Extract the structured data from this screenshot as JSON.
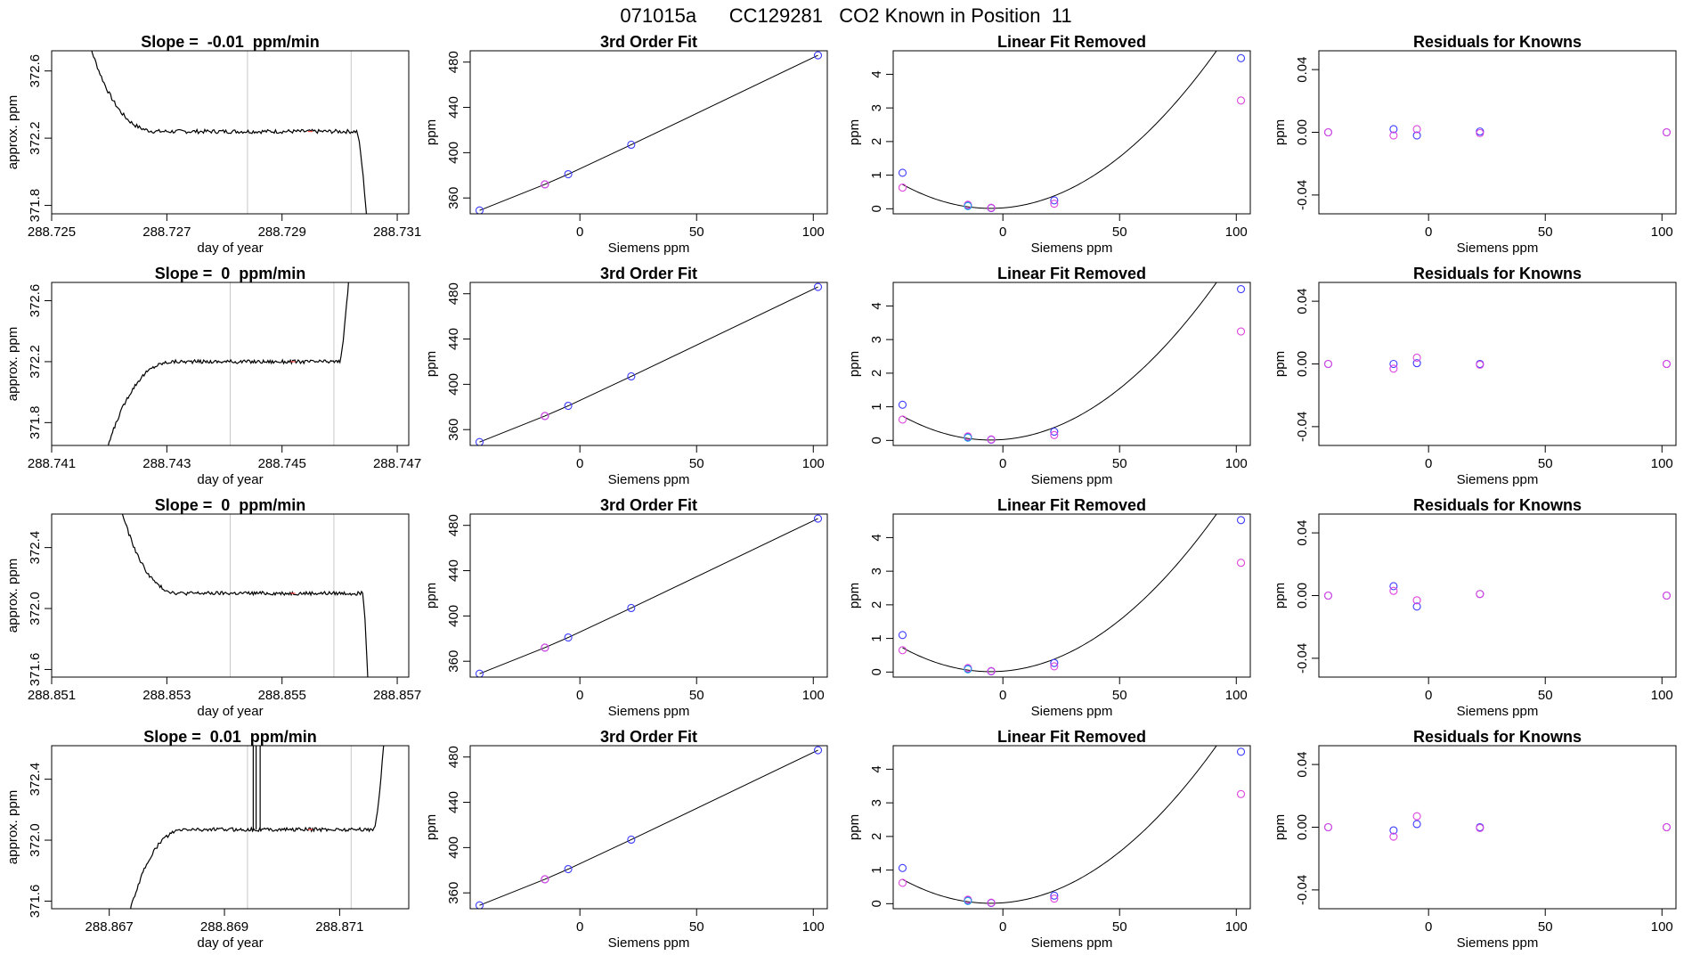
{
  "suptitle": "071015a      CC129281   CO2 Known in Position  11",
  "colors": {
    "blue": "#3b3bff",
    "magenta": "#dd44dd",
    "cyan": "#22a8dd",
    "line": "#000000",
    "vline": "#c8c8c8",
    "redtick": "#ff4444"
  },
  "chart_data": [
    {
      "type": "line",
      "panel": "trace-row-1",
      "title": "Slope =  -0.01  ppm/min",
      "xlabel": "day of year",
      "ylabel": "approx. ppm",
      "xlim": [
        288.725,
        288.7312
      ],
      "ylim": [
        371.75,
        372.72
      ],
      "xticks": [
        288.725,
        288.727,
        288.729,
        288.731
      ],
      "xticklabels": [
        "288.725",
        "288.727",
        "288.729",
        "288.731"
      ],
      "yticks": [
        371.8,
        372.2,
        372.6
      ],
      "yticklabels": [
        "371.8",
        "372.2",
        "372.6"
      ],
      "vlines": [
        288.7284,
        288.7302
      ],
      "base": 372.24,
      "noise": 0.012,
      "x_start": 288.7255,
      "start_value": 372.95,
      "x_settle": 288.7269,
      "x_drop": 288.7303,
      "x_end": 288.7305,
      "end_value": 371.6,
      "spikes": []
    },
    {
      "type": "scatter",
      "panel": "fit-row-1",
      "title": "3rd Order Fit",
      "xlabel": "Siemens ppm",
      "ylabel": "ppm",
      "xlim": [
        -47,
        106
      ],
      "ylim": [
        346,
        490
      ],
      "xticks": [
        0,
        50,
        100
      ],
      "xticklabels": [
        "0",
        "50",
        "100"
      ],
      "yticks": [
        360,
        400,
        440,
        480
      ],
      "yticklabels": [
        "360",
        "400",
        "440",
        "480"
      ],
      "x": [
        -43,
        -15,
        -5,
        22,
        102
      ],
      "y": [
        349,
        372,
        381,
        407,
        486
      ]
    },
    {
      "type": "scatter",
      "panel": "linear-removed-row-1",
      "title": "Linear Fit Removed",
      "xlabel": "Siemens ppm",
      "ylabel": "ppm",
      "xlim": [
        -47,
        106
      ],
      "ylim": [
        -0.15,
        4.7
      ],
      "xticks": [
        0,
        50,
        100
      ],
      "xticklabels": [
        "0",
        "50",
        "100"
      ],
      "yticks": [
        0,
        1,
        2,
        3,
        4
      ],
      "yticklabels": [
        "0",
        "1",
        "2",
        "3",
        "4"
      ],
      "series": [
        {
          "color": "blue",
          "x": [
            -43,
            -15,
            -5,
            22,
            102
          ],
          "y": [
            1.07,
            0.1,
            0.02,
            0.25,
            4.48
          ]
        },
        {
          "color": "magenta",
          "x": [
            -43,
            -15,
            -5,
            22,
            102
          ],
          "y": [
            0.63,
            0.12,
            0.03,
            0.15,
            3.22
          ]
        },
        {
          "color": "cyan",
          "x": [
            -15
          ],
          "y": [
            0.08
          ]
        }
      ],
      "curve": {
        "a": 0.0005,
        "b": 0.0053,
        "c": 0.026
      }
    },
    {
      "type": "scatter",
      "panel": "residuals-row-1",
      "title": "Residuals for Knowns",
      "xlabel": "Siemens ppm",
      "ylabel": "ppm",
      "xlim": [
        -47,
        106
      ],
      "ylim": [
        -0.052,
        0.052
      ],
      "xticks": [
        0,
        50,
        100
      ],
      "xticklabels": [
        "0",
        "50",
        "100"
      ],
      "yticks": [
        -0.04,
        0,
        0.04
      ],
      "yticklabels": [
        "-0.04",
        "0.00",
        "0.04"
      ],
      "series": [
        {
          "color": "blue",
          "x": [
            -43,
            -15,
            -5,
            22,
            102
          ],
          "y": [
            0.0,
            0.002,
            -0.002,
            0.0005,
            0.0
          ]
        },
        {
          "color": "magenta",
          "x": [
            -43,
            -15,
            -5,
            22,
            102
          ],
          "y": [
            0.0,
            -0.002,
            0.002,
            -0.0005,
            0.0
          ]
        }
      ]
    },
    {
      "type": "line",
      "panel": "trace-row-2",
      "title": "Slope =  0  ppm/min",
      "xlabel": "day of year",
      "ylabel": "approx. ppm",
      "xlim": [
        288.741,
        288.7472
      ],
      "ylim": [
        371.65,
        372.72
      ],
      "xticks": [
        288.741,
        288.743,
        288.745,
        288.747
      ],
      "xticklabels": [
        "288.741",
        "288.743",
        "288.745",
        "288.747"
      ],
      "yticks": [
        371.8,
        372.2,
        372.6
      ],
      "yticklabels": [
        "371.8",
        "372.2",
        "372.6"
      ],
      "vlines": [
        288.7441,
        288.7459
      ],
      "base": 372.2,
      "noise": 0.012,
      "x_start": 288.7419,
      "start_value": 371.55,
      "x_settle": 288.7432,
      "x_drop": 288.746,
      "x_end": 288.7462,
      "end_value": 372.95,
      "spikes": []
    },
    {
      "type": "scatter",
      "panel": "fit-row-2",
      "title": "3rd Order Fit",
      "xlabel": "Siemens ppm",
      "ylabel": "ppm",
      "xlim": [
        -47,
        106
      ],
      "ylim": [
        346,
        490
      ],
      "xticks": [
        0,
        50,
        100
      ],
      "xticklabels": [
        "0",
        "50",
        "100"
      ],
      "yticks": [
        360,
        400,
        440,
        480
      ],
      "yticklabels": [
        "360",
        "400",
        "440",
        "480"
      ],
      "x": [
        -43,
        -15,
        -5,
        22,
        102
      ],
      "y": [
        349,
        372,
        381,
        407,
        486
      ]
    },
    {
      "type": "scatter",
      "panel": "linear-removed-row-2",
      "title": "Linear Fit Removed",
      "xlabel": "Siemens ppm",
      "ylabel": "ppm",
      "xlim": [
        -47,
        106
      ],
      "ylim": [
        -0.15,
        4.7
      ],
      "xticks": [
        0,
        50,
        100
      ],
      "xticklabels": [
        "0",
        "50",
        "100"
      ],
      "yticks": [
        0,
        1,
        2,
        3,
        4
      ],
      "yticklabels": [
        "0",
        "1",
        "2",
        "3",
        "4"
      ],
      "series": [
        {
          "color": "blue",
          "x": [
            -43,
            -15,
            -5,
            22,
            102
          ],
          "y": [
            1.06,
            0.1,
            0.02,
            0.26,
            4.5
          ]
        },
        {
          "color": "magenta",
          "x": [
            -43,
            -15,
            -5,
            22,
            102
          ],
          "y": [
            0.62,
            0.12,
            0.03,
            0.16,
            3.24
          ]
        },
        {
          "color": "cyan",
          "x": [
            -15
          ],
          "y": [
            0.08
          ]
        }
      ],
      "curve": {
        "a": 0.0005,
        "b": 0.0053,
        "c": 0.026
      }
    },
    {
      "type": "scatter",
      "panel": "residuals-row-2",
      "title": "Residuals for Knowns",
      "xlabel": "Siemens ppm",
      "ylabel": "ppm",
      "xlim": [
        -47,
        106
      ],
      "ylim": [
        -0.052,
        0.052
      ],
      "xticks": [
        0,
        50,
        100
      ],
      "xticklabels": [
        "0",
        "50",
        "100"
      ],
      "yticks": [
        -0.04,
        0,
        0.04
      ],
      "yticklabels": [
        "-0.04",
        "0.00",
        "0.04"
      ],
      "series": [
        {
          "color": "blue",
          "x": [
            -43,
            -15,
            -5,
            22,
            102
          ],
          "y": [
            0.0,
            0.0,
            0.0005,
            0.0,
            0.0
          ]
        },
        {
          "color": "magenta",
          "x": [
            -43,
            -15,
            -5,
            22,
            102
          ],
          "y": [
            0.0,
            -0.003,
            0.004,
            -0.0005,
            0.0
          ]
        }
      ]
    },
    {
      "type": "line",
      "panel": "trace-row-3",
      "title": "Slope =  0  ppm/min",
      "xlabel": "day of year",
      "ylabel": "approx. ppm",
      "xlim": [
        288.851,
        288.8572
      ],
      "ylim": [
        371.55,
        372.62
      ],
      "xticks": [
        288.851,
        288.853,
        288.855,
        288.857
      ],
      "xticklabels": [
        "288.851",
        "288.853",
        "288.855",
        "288.857"
      ],
      "yticks": [
        371.6,
        372.0,
        372.4
      ],
      "yticklabels": [
        "371.6",
        "372.0",
        "372.4"
      ],
      "vlines": [
        288.8541,
        288.8559
      ],
      "base": 372.1,
      "noise": 0.012,
      "x_start": 288.8521,
      "start_value": 372.8,
      "x_settle": 288.8533,
      "x_drop": 288.8564,
      "x_end": 288.8565,
      "end_value": 371.45,
      "spikes": []
    },
    {
      "type": "scatter",
      "panel": "fit-row-3",
      "title": "3rd Order Fit",
      "xlabel": "Siemens ppm",
      "ylabel": "ppm",
      "xlim": [
        -47,
        106
      ],
      "ylim": [
        346,
        490
      ],
      "xticks": [
        0,
        50,
        100
      ],
      "xticklabels": [
        "0",
        "50",
        "100"
      ],
      "yticks": [
        360,
        400,
        440,
        480
      ],
      "yticklabels": [
        "360",
        "400",
        "440",
        "480"
      ],
      "x": [
        -43,
        -15,
        -5,
        22,
        102
      ],
      "y": [
        349,
        372,
        381,
        407,
        486
      ]
    },
    {
      "type": "scatter",
      "panel": "linear-removed-row-3",
      "title": "Linear Fit Removed",
      "xlabel": "Siemens ppm",
      "ylabel": "ppm",
      "xlim": [
        -47,
        106
      ],
      "ylim": [
        -0.15,
        4.7
      ],
      "xticks": [
        0,
        50,
        100
      ],
      "xticklabels": [
        "0",
        "50",
        "100"
      ],
      "yticks": [
        0,
        1,
        2,
        3,
        4
      ],
      "yticklabels": [
        "0",
        "1",
        "2",
        "3",
        "4"
      ],
      "series": [
        {
          "color": "blue",
          "x": [
            -43,
            -15,
            -5,
            22,
            102
          ],
          "y": [
            1.1,
            0.1,
            0.02,
            0.27,
            4.52
          ]
        },
        {
          "color": "magenta",
          "x": [
            -43,
            -15,
            -5,
            22,
            102
          ],
          "y": [
            0.65,
            0.12,
            0.03,
            0.17,
            3.25
          ]
        },
        {
          "color": "cyan",
          "x": [
            -15
          ],
          "y": [
            0.08
          ]
        }
      ],
      "curve": {
        "a": 0.0005,
        "b": 0.0053,
        "c": 0.026
      }
    },
    {
      "type": "scatter",
      "panel": "residuals-row-3",
      "title": "Residuals for Knowns",
      "xlabel": "Siemens ppm",
      "ylabel": "ppm",
      "xlim": [
        -47,
        106
      ],
      "ylim": [
        -0.052,
        0.052
      ],
      "xticks": [
        0,
        50,
        100
      ],
      "xticklabels": [
        "0",
        "50",
        "100"
      ],
      "yticks": [
        -0.04,
        0,
        0.04
      ],
      "yticklabels": [
        "-0.04",
        "0.00",
        "0.04"
      ],
      "series": [
        {
          "color": "blue",
          "x": [
            -43,
            -15,
            -5,
            22,
            102
          ],
          "y": [
            0.0,
            0.006,
            -0.007,
            0.001,
            0.0
          ]
        },
        {
          "color": "magenta",
          "x": [
            -43,
            -15,
            -5,
            22,
            102
          ],
          "y": [
            0.0,
            0.003,
            -0.003,
            0.001,
            0.0
          ]
        }
      ]
    },
    {
      "type": "line",
      "panel": "trace-row-4",
      "title": "Slope =  0.01  ppm/min",
      "xlabel": "day of year",
      "ylabel": "approx. ppm",
      "xlim": [
        288.866,
        288.8722
      ],
      "ylim": [
        371.55,
        372.62
      ],
      "xticks": [
        288.867,
        288.869,
        288.871
      ],
      "xticklabels": [
        "288.867",
        "288.869",
        "288.871"
      ],
      "yticks": [
        371.6,
        372.0,
        372.4
      ],
      "yticklabels": [
        "371.6",
        "372.0",
        "372.4"
      ],
      "vlines": [
        288.8694,
        288.8712
      ],
      "base": 372.07,
      "noise": 0.012,
      "x_start": 288.8673,
      "start_value": 371.45,
      "x_settle": 288.8684,
      "x_drop": 288.8716,
      "x_end": 288.8718,
      "end_value": 372.8,
      "spikes": [
        288.8695,
        288.86955,
        288.86962
      ]
    },
    {
      "type": "scatter",
      "panel": "fit-row-4",
      "title": "3rd Order Fit",
      "xlabel": "Siemens ppm",
      "ylabel": "ppm",
      "xlim": [
        -47,
        106
      ],
      "ylim": [
        346,
        490
      ],
      "xticks": [
        0,
        50,
        100
      ],
      "xticklabels": [
        "0",
        "50",
        "100"
      ],
      "yticks": [
        360,
        400,
        440,
        480
      ],
      "yticklabels": [
        "360",
        "400",
        "440",
        "480"
      ],
      "x": [
        -43,
        -15,
        -5,
        22,
        102
      ],
      "y": [
        349,
        372,
        381,
        407,
        486
      ]
    },
    {
      "type": "scatter",
      "panel": "linear-removed-row-4",
      "title": "Linear Fit Removed",
      "xlabel": "Siemens ppm",
      "ylabel": "ppm",
      "xlim": [
        -47,
        106
      ],
      "ylim": [
        -0.15,
        4.7
      ],
      "xticks": [
        0,
        50,
        100
      ],
      "xticklabels": [
        "0",
        "50",
        "100"
      ],
      "yticks": [
        0,
        1,
        2,
        3,
        4
      ],
      "yticklabels": [
        "0",
        "1",
        "2",
        "3",
        "4"
      ],
      "series": [
        {
          "color": "blue",
          "x": [
            -43,
            -15,
            -5,
            22,
            102
          ],
          "y": [
            1.06,
            0.1,
            0.02,
            0.24,
            4.52
          ]
        },
        {
          "color": "magenta",
          "x": [
            -43,
            -15,
            -5,
            22,
            102
          ],
          "y": [
            0.62,
            0.12,
            0.03,
            0.15,
            3.26
          ]
        },
        {
          "color": "cyan",
          "x": [
            -15
          ],
          "y": [
            0.08
          ]
        }
      ],
      "curve": {
        "a": 0.0005,
        "b": 0.0053,
        "c": 0.026
      }
    },
    {
      "type": "scatter",
      "panel": "residuals-row-4",
      "title": "Residuals for Knowns",
      "xlabel": "Siemens ppm",
      "ylabel": "ppm",
      "xlim": [
        -47,
        106
      ],
      "ylim": [
        -0.052,
        0.052
      ],
      "xticks": [
        0,
        50,
        100
      ],
      "xticklabels": [
        "0",
        "50",
        "100"
      ],
      "yticks": [
        -0.04,
        0,
        0.04
      ],
      "yticklabels": [
        "-0.04",
        "0.00",
        "0.04"
      ],
      "series": [
        {
          "color": "blue",
          "x": [
            -43,
            -15,
            -5,
            22,
            102
          ],
          "y": [
            0.0,
            -0.002,
            0.002,
            0.0,
            0.0
          ]
        },
        {
          "color": "magenta",
          "x": [
            -43,
            -15,
            -5,
            22,
            102
          ],
          "y": [
            0.0,
            -0.006,
            0.007,
            -0.0005,
            0.0
          ]
        }
      ]
    }
  ]
}
